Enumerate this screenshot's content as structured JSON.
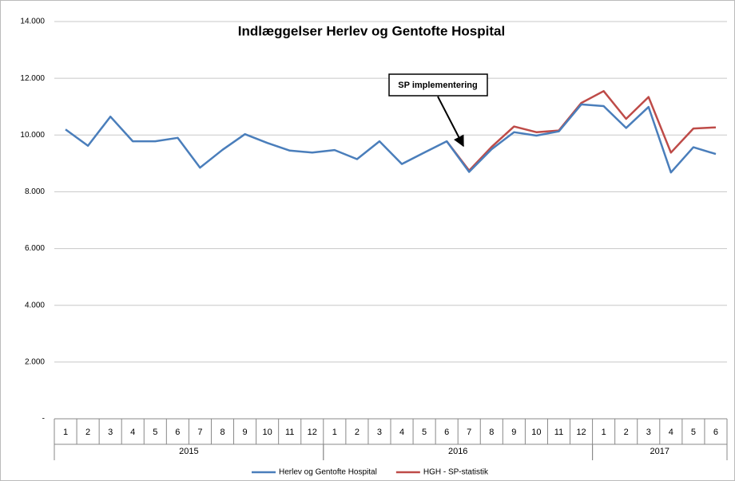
{
  "chart_data": {
    "type": "line",
    "title": "Indlæggelser Herlev og Gentofte Hospital",
    "category_groups": [
      {
        "label": "2015",
        "categories": [
          "1",
          "2",
          "3",
          "4",
          "5",
          "6",
          "7",
          "8",
          "9",
          "10",
          "11",
          "12"
        ]
      },
      {
        "label": "2016",
        "categories": [
          "1",
          "2",
          "3",
          "4",
          "5",
          "6",
          "7",
          "8",
          "9",
          "10",
          "11",
          "12"
        ]
      },
      {
        "label": "2017",
        "categories": [
          "1",
          "2",
          "3",
          "4",
          "5",
          "6"
        ]
      }
    ],
    "series": [
      {
        "name": "Herlev og Gentofte Hospital",
        "color": "#4a7ebb",
        "values": [
          10200,
          9620,
          10650,
          9780,
          9780,
          9900,
          8850,
          9480,
          10030,
          9720,
          9450,
          9380,
          9470,
          9150,
          9780,
          8980,
          9380,
          9780,
          8700,
          9500,
          10100,
          9980,
          10130,
          11080,
          11020,
          10250,
          10990,
          8680,
          9570,
          9330
        ]
      },
      {
        "name": "HGH - SP-statistik",
        "color": "#be4b48",
        "values": [
          null,
          null,
          null,
          null,
          null,
          null,
          null,
          null,
          null,
          null,
          null,
          null,
          null,
          null,
          null,
          null,
          null,
          9780,
          8750,
          9580,
          10300,
          10100,
          10160,
          11130,
          11550,
          10570,
          11340,
          9380,
          10230,
          10270
        ]
      }
    ],
    "ylim": [
      0,
      14000
    ],
    "yticks": [
      {
        "value": 0,
        "label": "-"
      },
      {
        "value": 2000,
        "label": "2.000"
      },
      {
        "value": 4000,
        "label": "4.000"
      },
      {
        "value": 6000,
        "label": "6.000"
      },
      {
        "value": 8000,
        "label": "8.000"
      },
      {
        "value": 10000,
        "label": "10.000"
      },
      {
        "value": 12000,
        "label": "12.000"
      },
      {
        "value": 14000,
        "label": "14.000"
      }
    ],
    "grid": true,
    "legend": "bottom",
    "annotation": {
      "text": "SP implementering"
    }
  }
}
